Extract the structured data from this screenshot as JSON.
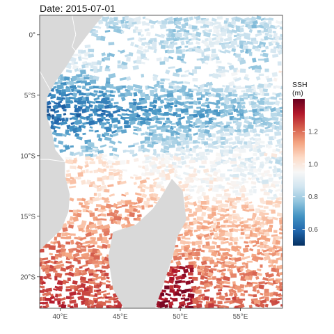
{
  "title": "Date: 2015-07-01",
  "map": {
    "lon_range": [
      38.3,
      58.5
    ],
    "lat_range": [
      -22.6,
      1.6
    ],
    "y_ticks": [
      {
        "value": 0,
        "label": "0°"
      },
      {
        "value": -5,
        "label": "5°S"
      },
      {
        "value": -10,
        "label": "10°S"
      },
      {
        "value": -15,
        "label": "15°S"
      },
      {
        "value": -20,
        "label": "20°S"
      }
    ],
    "x_ticks": [
      {
        "value": 40,
        "label": "40°E"
      },
      {
        "value": 45,
        "label": "45°E"
      },
      {
        "value": 50,
        "label": "50°E"
      },
      {
        "value": 55,
        "label": "55°E"
      }
    ],
    "land_color": "#d9d9d9",
    "border_color": "#ffffff"
  },
  "legend": {
    "title_line1": "SSH",
    "title_line2": "(m)",
    "range": [
      0.5,
      1.4
    ],
    "ticks": [
      {
        "value": 0.6,
        "label": "0.6"
      },
      {
        "value": 0.8,
        "label": "0.8"
      },
      {
        "value": 1.0,
        "label": "1.0"
      },
      {
        "value": 1.2,
        "label": "1.2"
      }
    ],
    "colors": [
      "#053061",
      "#2166ac",
      "#4393c3",
      "#92c5de",
      "#d1e5f0",
      "#f7f7f7",
      "#fddbc7",
      "#f4a582",
      "#d6604d",
      "#b2182b",
      "#67001f"
    ]
  }
}
